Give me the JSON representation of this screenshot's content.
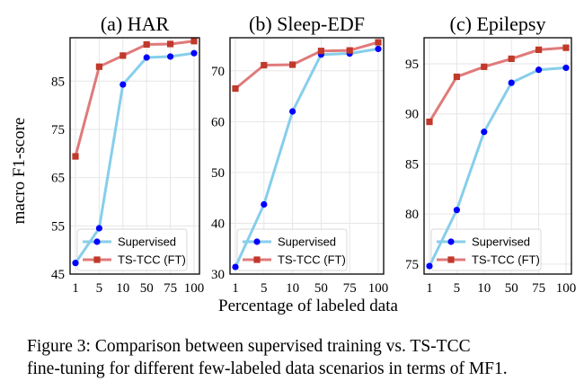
{
  "figure": {
    "ylabel": "macro F1-score",
    "xlabel": "Percentage of labeled data",
    "caption_line1": "Figure 3:  Comparison between supervised training vs.  TS-TCC",
    "caption_line2": "fine-tuning for different few-labeled data scenarios in terms of MF1.",
    "colors": {
      "supervised": "#87CEEB",
      "supervised_marker": "#0000ff",
      "tstcc": "#E07A7A",
      "tstcc_marker": "#c0392b"
    }
  },
  "chart_data": [
    {
      "type": "line",
      "title": "(a) HAR",
      "categories": [
        "1",
        "5",
        "10",
        "50",
        "75",
        "100"
      ],
      "ylim": [
        45,
        94
      ],
      "yticks": [
        45,
        55,
        65,
        75,
        85
      ],
      "series": [
        {
          "name": "Supervised",
          "values": [
            47.3,
            54.5,
            84.3,
            89.9,
            90.1,
            90.8
          ]
        },
        {
          "name": "TS-TCC (FT)",
          "values": [
            69.4,
            88.0,
            90.3,
            92.6,
            92.7,
            93.3
          ]
        }
      ]
    },
    {
      "type": "line",
      "title": "(b) Sleep-EDF",
      "categories": [
        "1",
        "5",
        "10",
        "50",
        "75",
        "100"
      ],
      "ylim": [
        30,
        76.5
      ],
      "yticks": [
        30,
        40,
        50,
        60,
        70
      ],
      "series": [
        {
          "name": "Supervised",
          "values": [
            31.4,
            43.7,
            62.0,
            73.2,
            73.4,
            74.3
          ]
        },
        {
          "name": "TS-TCC (FT)",
          "values": [
            66.5,
            71.1,
            71.2,
            73.9,
            74.0,
            75.6
          ]
        }
      ]
    },
    {
      "type": "line",
      "title": "(c) Epilepsy",
      "categories": [
        "1",
        "5",
        "10",
        "50",
        "75",
        "100"
      ],
      "ylim": [
        74,
        97.6
      ],
      "yticks": [
        75,
        80,
        85,
        90,
        95
      ],
      "series": [
        {
          "name": "Supervised",
          "values": [
            74.8,
            80.4,
            88.2,
            93.1,
            94.4,
            94.6
          ]
        },
        {
          "name": "TS-TCC (FT)",
          "values": [
            89.2,
            93.7,
            94.7,
            95.5,
            96.4,
            96.6
          ]
        }
      ]
    }
  ]
}
